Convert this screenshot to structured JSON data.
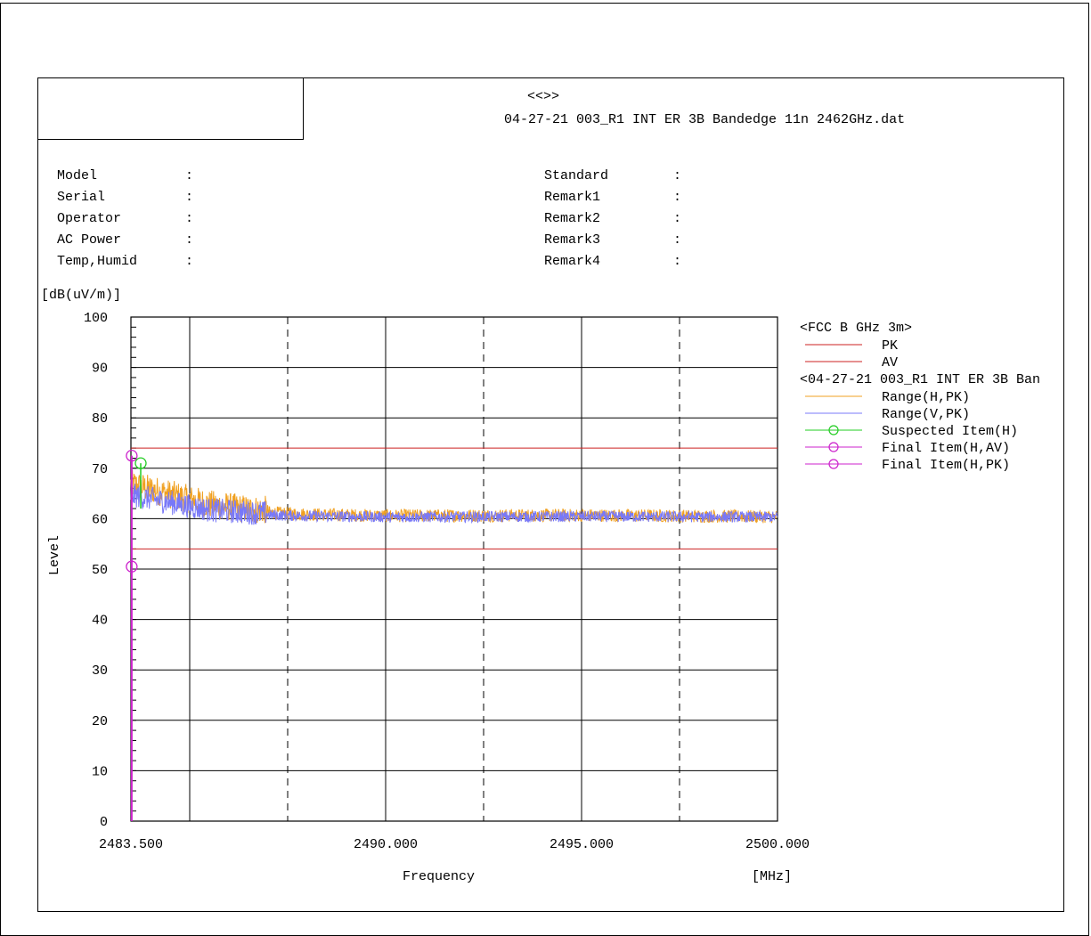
{
  "header": {
    "marker": "<<>>",
    "filename": "04-27-21 003_R1 INT ER 3B Bandedge 11n 2462GHz.dat"
  },
  "meta_left": [
    {
      "label": "Model",
      "sep": ":"
    },
    {
      "label": "Serial",
      "sep": ":"
    },
    {
      "label": "Operator",
      "sep": ":"
    },
    {
      "label": "AC Power",
      "sep": ":"
    },
    {
      "label": "Temp,Humid",
      "sep": ":"
    }
  ],
  "meta_right": [
    {
      "label": "Standard",
      "sep": ":"
    },
    {
      "label": "Remark1",
      "sep": ":"
    },
    {
      "label": "Remark2",
      "sep": ":"
    },
    {
      "label": "Remark3",
      "sep": ":"
    },
    {
      "label": "Remark4",
      "sep": ":"
    }
  ],
  "colors": {
    "limit": "#cc2222",
    "range_h": "#f0a020",
    "range_v": "#7878f8",
    "suspected": "#22cc22",
    "final": "#cc22cc",
    "grid": "#000000"
  },
  "chart_data": {
    "type": "line",
    "ylabel_unit": "[dB(uV/m)]",
    "ylabel": "Level",
    "xlabel": "Frequency",
    "xunit": "[MHz]",
    "ylim": [
      0,
      100
    ],
    "yticks": [
      "0",
      "10",
      "20",
      "30",
      "40",
      "50",
      "60",
      "70",
      "80",
      "90",
      "100"
    ],
    "xlim": [
      2483.5,
      2500.0
    ],
    "xtick_labels": [
      {
        "value": 2483.5,
        "label": "2483.500"
      },
      {
        "value": 2490.0,
        "label": "2490.000"
      },
      {
        "value": 2495.0,
        "label": "2495.000"
      },
      {
        "value": 2500.0,
        "label": "2500.000"
      }
    ],
    "grid": true,
    "limits": [
      {
        "name": "PK",
        "value": 74.0
      },
      {
        "name": "AV",
        "value": 54.0
      }
    ],
    "legend_groups": [
      {
        "title": "<FCC B GHz 3m>",
        "entries": [
          {
            "label": "PK",
            "key": "limit",
            "marker": false
          },
          {
            "label": "AV",
            "key": "limit",
            "marker": false
          }
        ]
      },
      {
        "title": "<04-27-21 003_R1 INT ER 3B Ban",
        "entries": [
          {
            "label": "Range(H,PK)",
            "key": "range_h",
            "marker": false
          },
          {
            "label": "Range(V,PK)",
            "key": "range_v",
            "marker": false
          },
          {
            "label": "Suspected Item(H)",
            "key": "suspected",
            "marker": true
          },
          {
            "label": "Final Item(H,AV)",
            "key": "final",
            "marker": true
          },
          {
            "label": "Final Item(H,PK)",
            "key": "final",
            "marker": true
          }
        ]
      }
    ],
    "legend_position": "right",
    "series": [
      {
        "name": "Range(H,PK)",
        "envelope": [
          [
            2483.5,
            66
          ],
          [
            2484.5,
            64
          ],
          [
            2485.5,
            62
          ],
          [
            2486.5,
            61
          ],
          [
            2488.0,
            60.5
          ],
          [
            2490.0,
            60.2
          ],
          [
            2495.0,
            60.3
          ],
          [
            2500.0,
            60.0
          ]
        ]
      },
      {
        "name": "Range(V,PK)",
        "envelope": [
          [
            2483.5,
            64
          ],
          [
            2484.5,
            62.5
          ],
          [
            2485.5,
            61
          ],
          [
            2486.5,
            60.5
          ],
          [
            2488.0,
            60.2
          ],
          [
            2490.0,
            60.0
          ],
          [
            2495.0,
            60.1
          ],
          [
            2500.0,
            60.0
          ]
        ]
      }
    ],
    "points": {
      "suspected_h": [
        {
          "x": 2483.75,
          "y": 71.0
        }
      ],
      "final_h_av": [
        {
          "x": 2483.52,
          "y": 50.5
        }
      ],
      "final_h_pk": [
        {
          "x": 2483.52,
          "y": 72.5
        }
      ]
    }
  }
}
